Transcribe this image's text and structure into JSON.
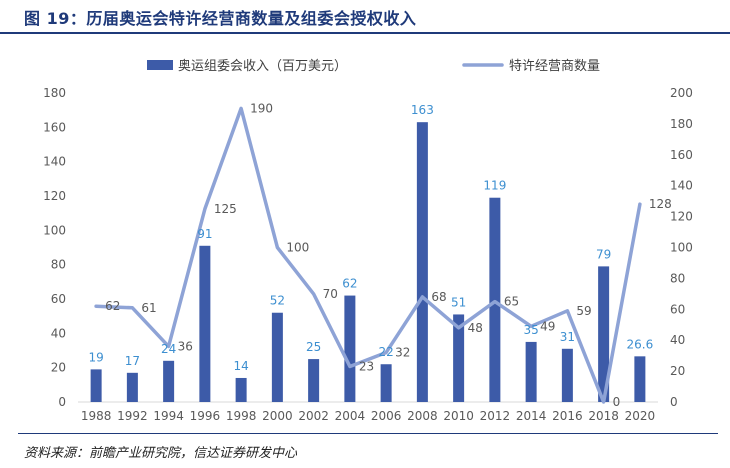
{
  "title": "图 19：历届奥运会特许经营商数量及组委会授权收入",
  "source": "资料来源：前瞻产业研究院，信达证券研发中心",
  "chart_data": {
    "type": "bar",
    "categories": [
      "1988",
      "1992",
      "1994",
      "1996",
      "1998",
      "2000",
      "2002",
      "2004",
      "2006",
      "2008",
      "2010",
      "2012",
      "2014",
      "2016",
      "2018",
      "2020"
    ],
    "series": [
      {
        "name": "奥运组委会收入（百万美元）",
        "type": "bar",
        "axis": "left",
        "color": "#3d5ba8",
        "values": [
          19,
          17,
          24,
          91,
          14,
          52,
          25,
          62,
          22,
          163,
          51,
          119,
          35,
          31,
          79,
          26.6
        ],
        "labels": [
          "19",
          "17",
          "24",
          "91",
          "14",
          "52",
          "25",
          "62",
          "22",
          "163",
          "51",
          "119",
          "35",
          "31",
          "79",
          "26.6"
        ]
      },
      {
        "name": "特许经营商数量",
        "type": "line",
        "axis": "right",
        "color": "#8ea3d6",
        "values": [
          62,
          61,
          36,
          125,
          190,
          100,
          70,
          23,
          32,
          68,
          48,
          65,
          49,
          59,
          0,
          128
        ],
        "labels": [
          "62",
          "61",
          "36",
          "125",
          "190",
          "100",
          "70",
          "23",
          "32",
          "68",
          "48",
          "65",
          "49",
          "59",
          "0",
          "128"
        ]
      }
    ],
    "left_axis": {
      "ylim": [
        0,
        180
      ],
      "ticks": [
        "0",
        "20",
        "40",
        "60",
        "80",
        "100",
        "120",
        "140",
        "160",
        "180"
      ]
    },
    "right_axis": {
      "ylim": [
        0,
        200
      ],
      "ticks": [
        "0",
        "20",
        "40",
        "60",
        "80",
        "100",
        "120",
        "140",
        "160",
        "180",
        "200"
      ]
    },
    "grid": false,
    "legend": "top-center"
  }
}
